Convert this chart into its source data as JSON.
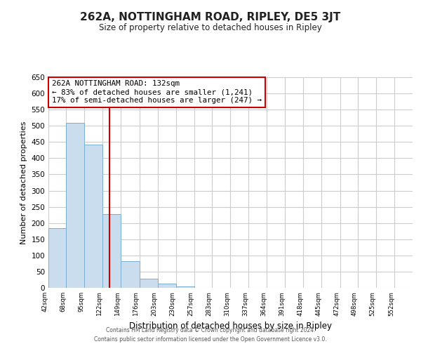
{
  "title": "262A, NOTTINGHAM ROAD, RIPLEY, DE5 3JT",
  "subtitle": "Size of property relative to detached houses in Ripley",
  "xlabel": "Distribution of detached houses by size in Ripley",
  "ylabel": "Number of detached properties",
  "bar_color": "#c9ddef",
  "bar_edge_color": "#7aaed0",
  "background_color": "#ffffff",
  "grid_color": "#cccccc",
  "ref_line_x": 132,
  "ref_line_color": "#cc0000",
  "annotation_box_color": "#ffffff",
  "annotation_box_edge": "#cc0000",
  "annotation_line1": "262A NOTTINGHAM ROAD: 132sqm",
  "annotation_line2": "← 83% of detached houses are smaller (1,241)",
  "annotation_line3": "17% of semi-detached houses are larger (247) →",
  "bins": [
    42,
    68,
    95,
    122,
    149,
    176,
    203,
    230,
    257,
    283,
    310,
    337,
    364,
    391,
    418,
    445,
    472,
    498,
    525,
    552,
    579
  ],
  "counts": [
    185,
    510,
    443,
    228,
    83,
    28,
    13,
    4,
    1,
    1,
    1,
    0,
    0,
    0,
    0,
    0,
    0,
    0,
    0,
    1
  ],
  "ylim": [
    0,
    650
  ],
  "yticks": [
    0,
    50,
    100,
    150,
    200,
    250,
    300,
    350,
    400,
    450,
    500,
    550,
    600,
    650
  ],
  "footer_line1": "Contains HM Land Registry data © Crown copyright and database right 2024.",
  "footer_line2": "Contains public sector information licensed under the Open Government Licence v3.0."
}
